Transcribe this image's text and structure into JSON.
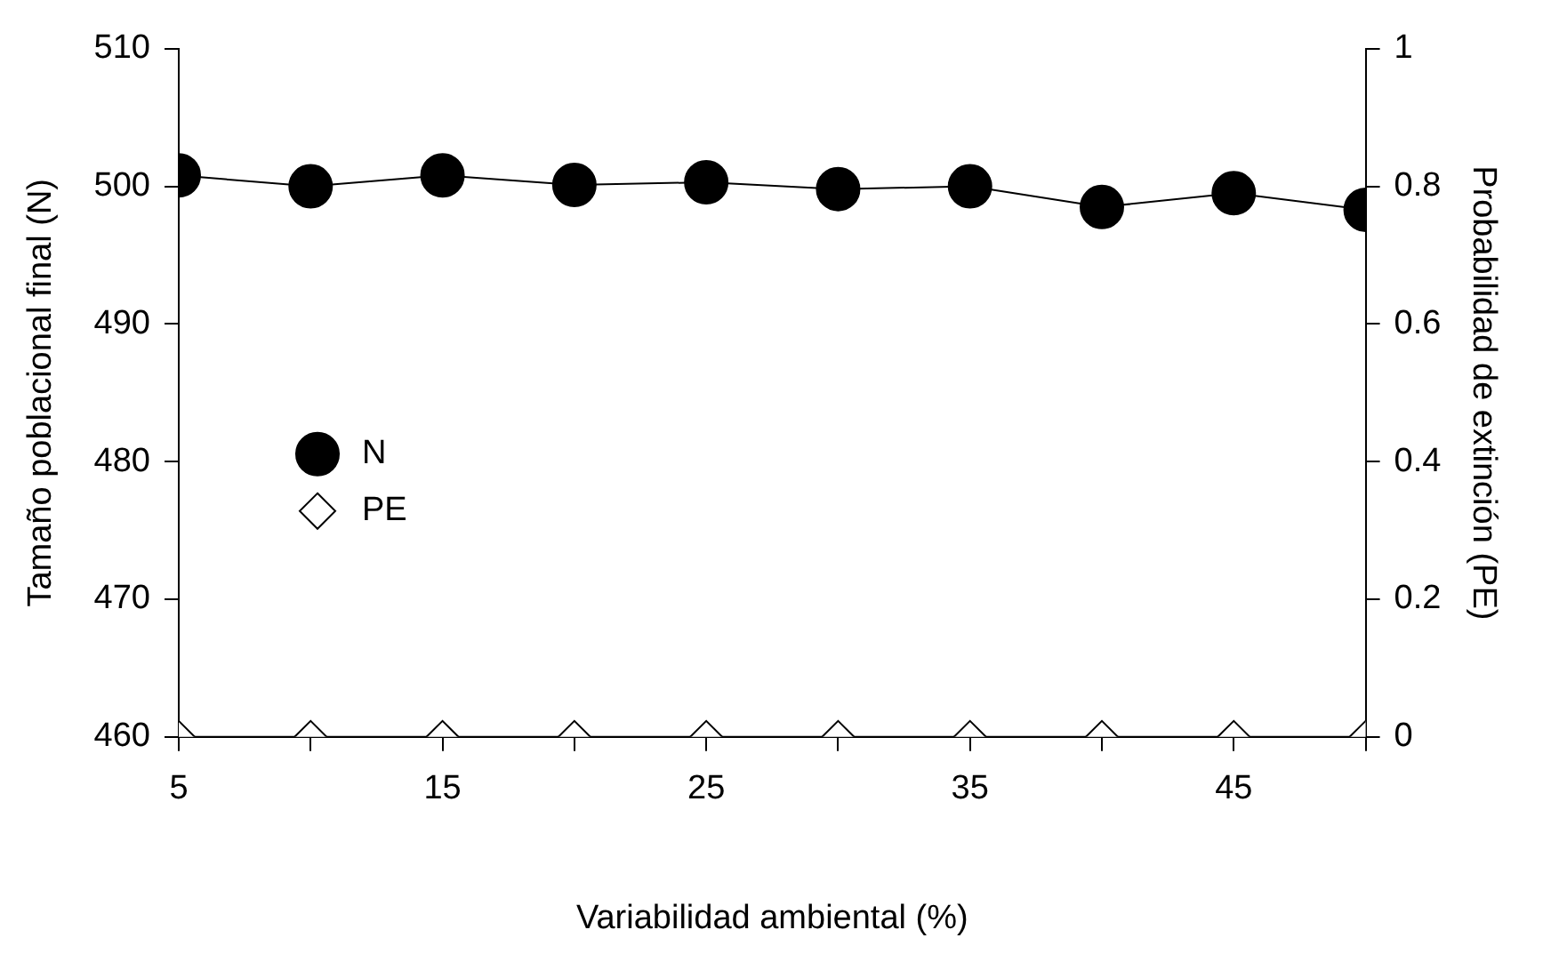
{
  "chart_data": {
    "type": "line",
    "xlabel": "Variabilidad ambiental (%)",
    "ylabel": "Tamaño poblacional final (N)",
    "y2label": "Probabilidad de extinción (PE)",
    "x": [
      5,
      10,
      15,
      20,
      25,
      30,
      35,
      40,
      45,
      50
    ],
    "series": [
      {
        "name": "N",
        "color": "#000000",
        "marker": "circle",
        "values": [
          500.8,
          500.0,
          500.8,
          500.1,
          500.3,
          499.8,
          500.0,
          498.5,
          499.5,
          498.3
        ]
      },
      {
        "name": "PE",
        "color": "#ffffff",
        "marker": "diamond",
        "axis": "y2",
        "values": [
          0,
          0,
          0,
          0,
          0,
          0,
          0,
          0,
          0,
          0
        ]
      }
    ],
    "xlim": [
      5,
      50
    ],
    "xticks": [
      5,
      {
        "value": 10,
        "label": null
      },
      15,
      {
        "value": 20,
        "label": null
      },
      25,
      {
        "value": 30,
        "label": null
      },
      35,
      {
        "value": 40,
        "label": null
      },
      45,
      {
        "value": 50,
        "label": null
      }
    ],
    "ylim": [
      460,
      510
    ],
    "yticks": [
      460,
      470,
      480,
      490,
      500,
      510
    ],
    "y2lim": [
      0,
      1
    ],
    "y2ticks": [
      0,
      0.2,
      0.4,
      0.6,
      0.8,
      1
    ],
    "grid": false,
    "legend": "left",
    "line_style": "solid"
  }
}
